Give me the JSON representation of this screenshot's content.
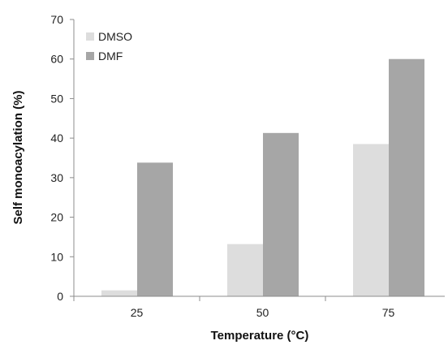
{
  "chart_data": {
    "type": "bar",
    "title": "",
    "xlabel": "Temperature (°C)",
    "ylabel": "Self monoacylation (%)",
    "categories": [
      "25",
      "50",
      "75"
    ],
    "ylim": [
      0,
      70
    ],
    "yticks": [
      0,
      10,
      20,
      30,
      40,
      50,
      60,
      70
    ],
    "grid": false,
    "legend": "top-left",
    "series": [
      {
        "name": "DMSO",
        "values": [
          1.5,
          13.2,
          38.5
        ],
        "color": "#dddddd"
      },
      {
        "name": "DMF",
        "values": [
          33.8,
          41.3,
          60.0
        ],
        "color": "#a6a6a6"
      }
    ]
  }
}
